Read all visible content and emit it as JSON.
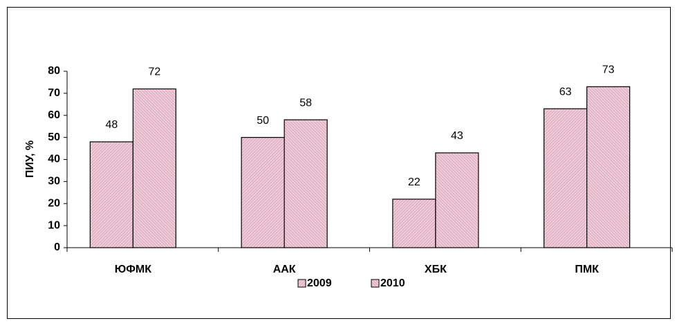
{
  "chart_data": {
    "type": "bar",
    "y_label": "ПИУ, %",
    "categories": [
      "ЮФМК",
      "ААК",
      "ХБК",
      "ПМК"
    ],
    "series": [
      {
        "name": "2009",
        "color": "#e3b3c6",
        "values": [
          48,
          50,
          22,
          63
        ]
      },
      {
        "name": "2010",
        "color": "#e3b3c6",
        "values": [
          72,
          58,
          43,
          73
        ]
      }
    ],
    "ylim": [
      0,
      80
    ],
    "yticks": [
      0,
      10,
      20,
      30,
      40,
      50,
      60,
      70,
      80
    ],
    "grid": false,
    "legend": "bottom"
  }
}
